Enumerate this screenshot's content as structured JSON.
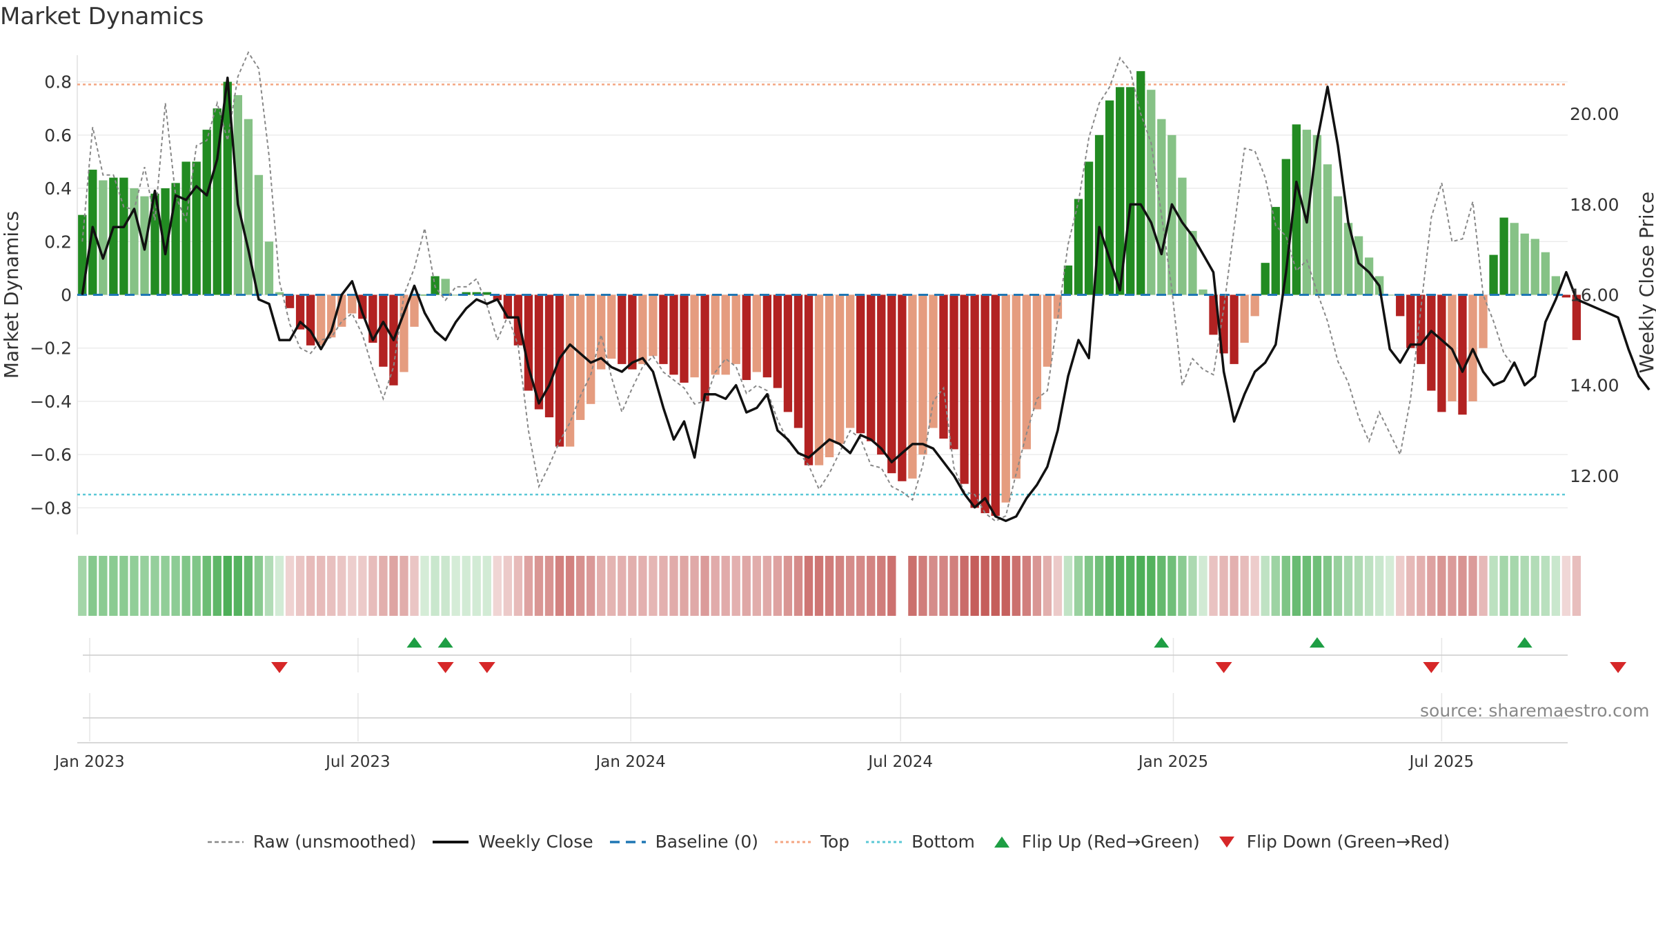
{
  "title": "Market Dynamics",
  "source_text": "source: sharemaestro.com",
  "colors": {
    "green_dark": "#228b22",
    "green_light": "#86c286",
    "red_dark": "#b22222",
    "red_light": "#e59c7f",
    "raw": "#888888",
    "close": "#111111",
    "baseline": "#1f77b4",
    "top": "#f4a582",
    "bottom": "#5bc8d6",
    "flip_up": "#1e9e44",
    "flip_down": "#d62728"
  },
  "legend": [
    {
      "key": "raw",
      "label": "Raw (unsmoothed)"
    },
    {
      "key": "close",
      "label": "Weekly Close"
    },
    {
      "key": "baseline",
      "label": "Baseline (0)"
    },
    {
      "key": "top",
      "label": "Top"
    },
    {
      "key": "bottom",
      "label": "Bottom"
    },
    {
      "key": "flip_up",
      "label": "Flip Up (Red→Green)"
    },
    {
      "key": "flip_down",
      "label": "Flip Down (Green→Red)"
    }
  ],
  "chart_data": {
    "type": "bar",
    "title": "Market Dynamics",
    "ylabel": "Market Dynamics",
    "y2label": "Weekly Close Price",
    "ylim": [
      -0.9,
      0.9
    ],
    "y2lim": [
      10.7,
      21.3
    ],
    "yticks": [
      0.8,
      0.6,
      0.4,
      0.2,
      0,
      -0.2,
      -0.4,
      -0.6,
      -0.8
    ],
    "ytick_labels": [
      "0.8",
      "0.6",
      "0.4",
      "0.2",
      "0",
      "−0.2",
      "−0.4",
      "−0.6",
      "−0.8"
    ],
    "y2ticks": [
      20.0,
      18.0,
      16.0,
      14.0,
      12.0
    ],
    "y2tick_labels": [
      "20.00",
      "18.00",
      "16.00",
      "14.00",
      "12.00"
    ],
    "x_start": "2023-01-01",
    "x_end": "2025-09-24",
    "xticks": [
      {
        "date": "2023-01-01",
        "label": "Jan 2023"
      },
      {
        "date": "2023-07-01",
        "label": "Jul 2023"
      },
      {
        "date": "2024-01-01",
        "label": "Jan 2024"
      },
      {
        "date": "2024-07-01",
        "label": "Jul 2024"
      },
      {
        "date": "2025-01-01",
        "label": "Jan 2025"
      },
      {
        "date": "2025-07-01",
        "label": "Jul 2025"
      }
    ],
    "top_line": 0.79,
    "bottom_line": -0.75,
    "baseline": 0,
    "first_week": "2022-12-27",
    "week_days": 7,
    "gap_week_index": 79,
    "momentum": [
      0.3,
      0.47,
      0.43,
      0.44,
      0.44,
      0.4,
      0.37,
      0.38,
      0.4,
      0.42,
      0.5,
      0.5,
      0.62,
      0.7,
      0.8,
      0.75,
      0.66,
      0.45,
      0.2,
      0.01,
      -0.05,
      -0.13,
      -0.19,
      -0.19,
      -0.16,
      -0.12,
      -0.07,
      -0.09,
      -0.18,
      -0.27,
      -0.34,
      -0.29,
      -0.12,
      0,
      0.07,
      0.06,
      0,
      0.01,
      0.01,
      0.01,
      -0.02,
      -0.09,
      -0.19,
      -0.36,
      -0.43,
      -0.46,
      -0.57,
      -0.57,
      -0.47,
      -0.41,
      -0.28,
      -0.24,
      -0.26,
      -0.28,
      -0.26,
      -0.23,
      -0.26,
      -0.3,
      -0.33,
      -0.31,
      -0.4,
      -0.3,
      -0.3,
      -0.26,
      -0.32,
      -0.29,
      -0.31,
      -0.35,
      -0.44,
      -0.5,
      -0.64,
      -0.64,
      -0.61,
      -0.56,
      -0.5,
      -0.52,
      -0.55,
      -0.6,
      -0.67,
      -0.7,
      -0.69,
      -0.6,
      -0.5,
      -0.54,
      -0.58,
      -0.71,
      -0.8,
      -0.82,
      -0.83,
      -0.78,
      -0.69,
      -0.58,
      -0.43,
      -0.27,
      -0.09,
      0.11,
      0.36,
      0.5,
      0.6,
      0.73,
      0.78,
      0.78,
      0.84,
      0.77,
      0.66,
      0.6,
      0.44,
      0.24,
      0.02,
      -0.15,
      -0.22,
      -0.26,
      -0.18,
      -0.08,
      0.12,
      0.33,
      0.51,
      0.64,
      0.62,
      0.6,
      0.49,
      0.37,
      0.27,
      0.22,
      0.14,
      0.07,
      0,
      -0.08,
      -0.2,
      -0.26,
      -0.36,
      -0.44,
      -0.4,
      -0.45,
      -0.4,
      -0.2,
      0.15,
      0.29,
      0.27,
      0.23,
      0.21,
      0.16,
      0.07,
      -0.01,
      -0.17
    ],
    "raw": [
      0.2,
      0.63,
      0.45,
      0.45,
      0.33,
      0.32,
      0.48,
      0.28,
      0.72,
      0.37,
      0.28,
      0.56,
      0.58,
      0.72,
      0.58,
      0.82,
      0.91,
      0.85,
      0.52,
      0.05,
      -0.11,
      -0.2,
      -0.22,
      -0.17,
      -0.16,
      -0.1,
      -0.07,
      -0.15,
      -0.28,
      -0.39,
      -0.27,
      0,
      0.1,
      0.25,
      0.03,
      -0.02,
      0.03,
      0.03,
      0.06,
      -0.04,
      -0.17,
      -0.08,
      -0.19,
      -0.51,
      -0.72,
      -0.64,
      -0.55,
      -0.48,
      -0.38,
      -0.3,
      -0.15,
      -0.31,
      -0.44,
      -0.35,
      -0.27,
      -0.23,
      -0.29,
      -0.32,
      -0.35,
      -0.41,
      -0.4,
      -0.29,
      -0.24,
      -0.27,
      -0.37,
      -0.34,
      -0.36,
      -0.47,
      -0.55,
      -0.59,
      -0.64,
      -0.73,
      -0.67,
      -0.59,
      -0.51,
      -0.54,
      -0.64,
      -0.65,
      -0.72,
      -0.74,
      -0.77,
      -0.64,
      -0.4,
      -0.35,
      -0.65,
      -0.74,
      -0.75,
      -0.82,
      -0.85,
      -0.83,
      -0.67,
      -0.52,
      -0.39,
      -0.36,
      -0.09,
      0.19,
      0.35,
      0.59,
      0.72,
      0.78,
      0.89,
      0.84,
      0.68,
      0.57,
      0.3,
      0.02,
      -0.34,
      -0.24,
      -0.28,
      -0.3,
      -0.05,
      0.25,
      0.55,
      0.54,
      0.44,
      0.26,
      0.22,
      0.09,
      0.13,
      0.01,
      -0.1,
      -0.25,
      -0.33,
      -0.46,
      -0.55,
      -0.44,
      -0.52,
      -0.6,
      -0.39,
      -0.05,
      0.29,
      0.42,
      0.2,
      0.21,
      0.35,
      0.0,
      -0.1,
      -0.22,
      -0.27
    ],
    "close": [
      16.0,
      17.5,
      16.8,
      17.5,
      17.5,
      17.9,
      17.0,
      18.3,
      16.9,
      18.2,
      18.1,
      18.4,
      18.2,
      19.0,
      20.8,
      18.0,
      17.0,
      15.9,
      15.8,
      15.0,
      15.0,
      15.4,
      15.2,
      14.8,
      15.2,
      16.0,
      16.3,
      15.6,
      15.0,
      15.4,
      15.0,
      15.6,
      16.2,
      15.6,
      15.2,
      15.0,
      15.4,
      15.7,
      15.9,
      15.8,
      15.9,
      15.5,
      15.5,
      14.4,
      13.6,
      14.0,
      14.6,
      14.9,
      14.7,
      14.5,
      14.6,
      14.4,
      14.3,
      14.5,
      14.6,
      14.3,
      13.5,
      12.8,
      13.2,
      12.4,
      13.8,
      13.8,
      13.7,
      14.0,
      13.4,
      13.5,
      13.8,
      13.0,
      12.8,
      12.5,
      12.4,
      12.6,
      12.8,
      12.7,
      12.5,
      12.9,
      12.8,
      12.6,
      12.3,
      12.5,
      12.7,
      12.7,
      12.6,
      12.3,
      12.0,
      11.6,
      11.3,
      11.5,
      11.1,
      11.0,
      11.1,
      11.5,
      11.8,
      12.2,
      13.0,
      14.2,
      15.0,
      14.6,
      17.5,
      16.8,
      16.1,
      18.0,
      18.0,
      17.6,
      16.9,
      18.0,
      17.6,
      17.3,
      16.9,
      16.5,
      14.3,
      13.2,
      13.8,
      14.3,
      14.5,
      14.9,
      16.5,
      18.5,
      17.6,
      19.4,
      20.6,
      19.3,
      17.6,
      16.7,
      16.5,
      16.2,
      14.8,
      14.5,
      14.9,
      14.9,
      15.2,
      15.0,
      14.8,
      14.3,
      14.8,
      14.3,
      14.0,
      14.1,
      14.5,
      14.0,
      14.2,
      15.4,
      15.9,
      16.5,
      15.9,
      15.8,
      15.7,
      15.6,
      15.5,
      14.8,
      14.2,
      13.9
    ],
    "flip_up_weeks": [
      32,
      35,
      104,
      119,
      139
    ],
    "flip_down_weeks": [
      19,
      35,
      39,
      110,
      130,
      148
    ]
  }
}
